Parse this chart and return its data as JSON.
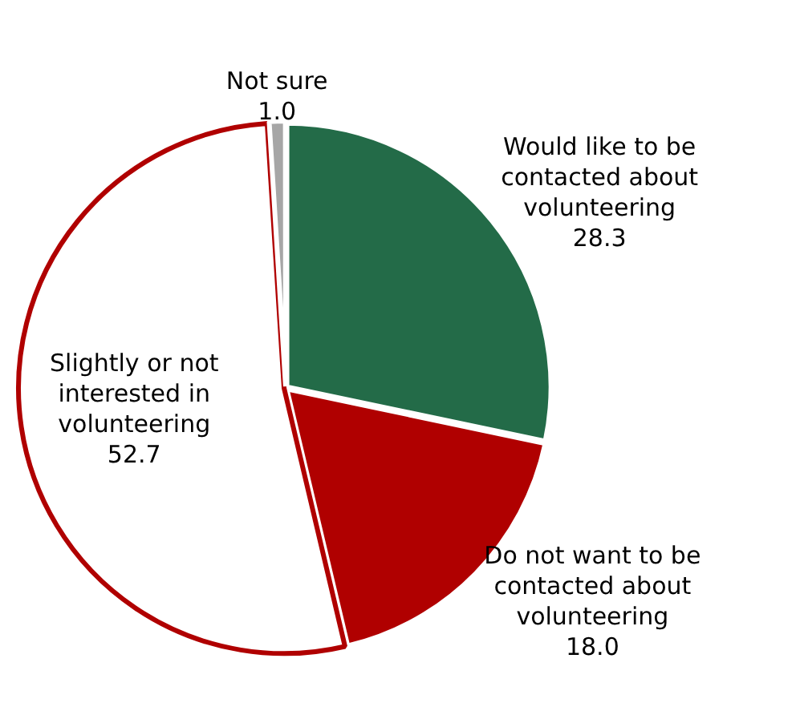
{
  "chart_data": {
    "type": "pie",
    "categories": [
      "Would like to be contacted about volunteering",
      "Do not want to be contacted about volunteering",
      "Slightly or not interested in volunteering",
      "Not sure"
    ],
    "values": [
      28.3,
      18.0,
      52.7,
      1.0
    ],
    "value_labels": [
      "28.3",
      "18.0",
      "52.7",
      "1.0"
    ],
    "colors": [
      "#236b48",
      "#b00000",
      "#ffffff",
      "#a6a6a6"
    ],
    "legend": false
  }
}
